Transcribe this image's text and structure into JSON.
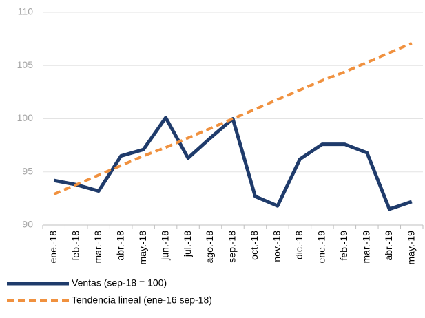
{
  "chart_data": {
    "type": "line",
    "categories": [
      "ene.-18",
      "feb.-18",
      "mar.-18",
      "abr.-18",
      "may.-18",
      "jun.-18",
      "jul.-18",
      "ago.-18",
      "sep.-18",
      "oct.-18",
      "nov.-18",
      "dic.-18",
      "ene.-19",
      "feb.-19",
      "mar.-19",
      "abr.-19",
      "may.-19"
    ],
    "series": [
      {
        "name": "Ventas (sep-18 = 100)",
        "color": "#1f3b6b",
        "dash": false,
        "values": [
          94.2,
          93.8,
          93.2,
          96.5,
          97.1,
          100.1,
          96.3,
          98.2,
          100,
          92.7,
          91.8,
          96.2,
          97.6,
          97.6,
          96.8,
          91.5,
          92.2
        ]
      },
      {
        "name": "Tendencia lineal (ene-16 sep-18)",
        "color": "#f0913f",
        "dash": true,
        "values": [
          92.9,
          93.8,
          94.7,
          95.6,
          96.5,
          97.3,
          98.2,
          99.1,
          100,
          100.9,
          101.8,
          102.7,
          103.6,
          104.4,
          105.3,
          106.2,
          107.1
        ]
      }
    ],
    "ylim": [
      90,
      110
    ],
    "yticks": [
      90,
      95,
      100,
      105,
      110
    ],
    "grid": true
  }
}
